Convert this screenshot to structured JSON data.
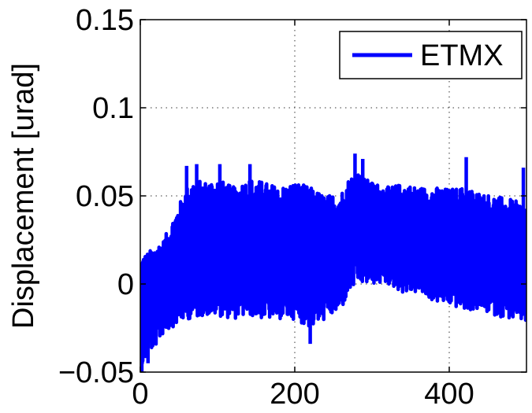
{
  "chart_data": {
    "type": "line",
    "title": "",
    "xlabel": "",
    "ylabel": "Displacement [urad]",
    "xlim": [
      0,
      500
    ],
    "ylim": [
      -0.05,
      0.15
    ],
    "x_ticks": [
      0,
      200,
      400
    ],
    "x_tick_labels": [
      "0",
      "200",
      "400"
    ],
    "y_ticks": [
      -0.05,
      0,
      0.05,
      0.1,
      0.15
    ],
    "y_tick_labels": [
      "−0.05",
      "0",
      "0.05",
      "0.1",
      "0.15"
    ],
    "grid": true,
    "legend_position": "top-right",
    "series": [
      {
        "name": "ETMX",
        "color": "#0000ff",
        "envelope": {
          "x": [
            0,
            5,
            10,
            20,
            30,
            40,
            50,
            60,
            70,
            80,
            100,
            120,
            140,
            160,
            180,
            200,
            220,
            240,
            260,
            270,
            280,
            290,
            300,
            320,
            340,
            360,
            380,
            400,
            420,
            440,
            460,
            480,
            500
          ],
          "upper": [
            0.015,
            0.017,
            0.018,
            0.022,
            0.025,
            0.035,
            0.045,
            0.055,
            0.06,
            0.058,
            0.06,
            0.055,
            0.06,
            0.058,
            0.055,
            0.058,
            0.055,
            0.05,
            0.052,
            0.06,
            0.065,
            0.06,
            0.058,
            0.055,
            0.057,
            0.055,
            0.055,
            0.054,
            0.055,
            0.052,
            0.05,
            0.048,
            0.045
          ],
          "lower": [
            -0.048,
            -0.045,
            -0.04,
            -0.035,
            -0.028,
            -0.025,
            -0.022,
            -0.02,
            -0.02,
            -0.018,
            -0.018,
            -0.02,
            -0.018,
            -0.02,
            -0.02,
            -0.02,
            -0.025,
            -0.02,
            -0.015,
            -0.005,
            0.0,
            0.0,
            0.0,
            0.0,
            -0.005,
            -0.005,
            -0.01,
            -0.012,
            -0.015,
            -0.015,
            -0.018,
            -0.02,
            -0.022
          ]
        },
        "peaks": [
          {
            "x": 2,
            "y": -0.05
          },
          {
            "x": 10,
            "y": -0.045
          },
          {
            "x": 60,
            "y": 0.067
          },
          {
            "x": 73,
            "y": 0.068
          },
          {
            "x": 103,
            "y": 0.068
          },
          {
            "x": 142,
            "y": 0.068
          },
          {
            "x": 220,
            "y": -0.034
          },
          {
            "x": 278,
            "y": 0.074
          },
          {
            "x": 288,
            "y": 0.071
          },
          {
            "x": 422,
            "y": 0.072
          },
          {
            "x": 496,
            "y": 0.066
          }
        ]
      }
    ]
  }
}
